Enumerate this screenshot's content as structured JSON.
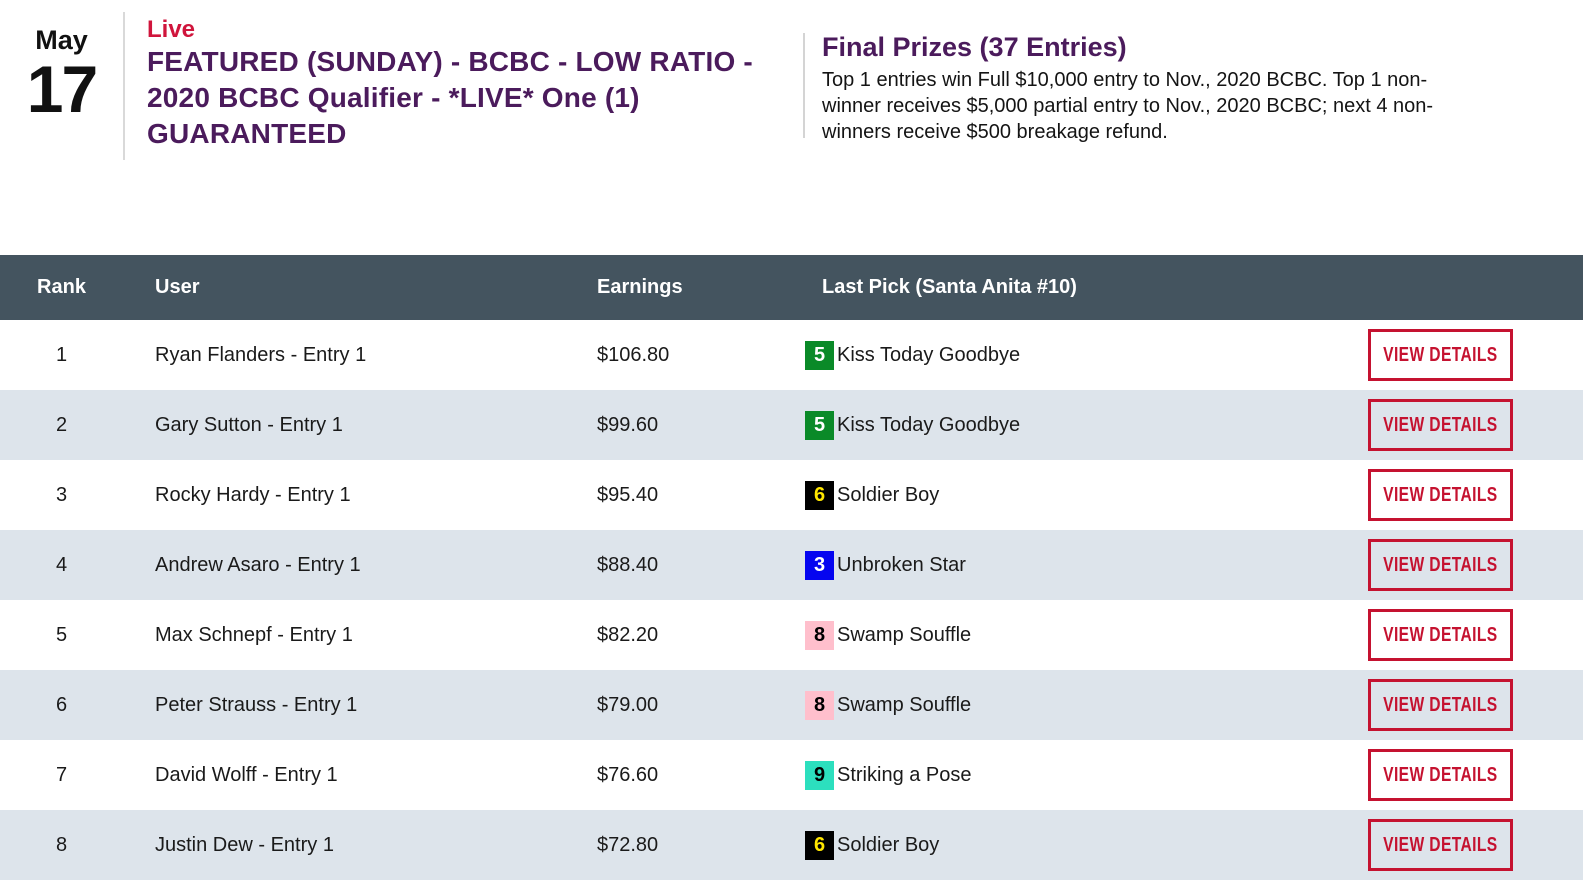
{
  "header": {
    "date_month": "May",
    "date_day": "17",
    "live_label": "Live",
    "title": "FEATURED (SUNDAY) - BCBC - LOW RATIO - 2020 BCBC Qualifier - *LIVE* One (1) GUARANTEED",
    "prizes_title": "Final Prizes (37 Entries)",
    "prizes_description": "Top 1 entries win Full $10,000 entry to Nov., 2020 BCBC. Top 1 non-winner receives $5,000 partial entry to Nov., 2020 BCBC; next 4 non-winners receive $500 breakage refund."
  },
  "table": {
    "headers": {
      "rank": "Rank",
      "user": "User",
      "earnings": "Earnings",
      "last_pick": "Last Pick (Santa Anita #10)"
    },
    "view_details_label": "VIEW DETAILS",
    "rows": [
      {
        "rank": "1",
        "user": "Ryan Flanders - Entry 1",
        "earnings": "$106.80",
        "pick_number": "5",
        "pick_name": "Kiss Today Goodbye",
        "pick_bg": "#0a8a28",
        "pick_fg": "#ffffff"
      },
      {
        "rank": "2",
        "user": "Gary Sutton - Entry 1",
        "earnings": "$99.60",
        "pick_number": "5",
        "pick_name": "Kiss Today Goodbye",
        "pick_bg": "#0a8a28",
        "pick_fg": "#ffffff"
      },
      {
        "rank": "3",
        "user": "Rocky Hardy - Entry 1",
        "earnings": "$95.40",
        "pick_number": "6",
        "pick_name": "Soldier Boy",
        "pick_bg": "#000000",
        "pick_fg": "#ffe600"
      },
      {
        "rank": "4",
        "user": "Andrew Asaro - Entry 1",
        "earnings": "$88.40",
        "pick_number": "3",
        "pick_name": "Unbroken Star",
        "pick_bg": "#0505f0",
        "pick_fg": "#ffffff"
      },
      {
        "rank": "5",
        "user": "Max Schnepf - Entry 1",
        "earnings": "$82.20",
        "pick_number": "8",
        "pick_name": "Swamp Souffle",
        "pick_bg": "#ffbfcc",
        "pick_fg": "#000000"
      },
      {
        "rank": "6",
        "user": "Peter Strauss - Entry 1",
        "earnings": "$79.00",
        "pick_number": "8",
        "pick_name": "Swamp Souffle",
        "pick_bg": "#ffbfcc",
        "pick_fg": "#000000"
      },
      {
        "rank": "7",
        "user": "David Wolff - Entry 1",
        "earnings": "$76.60",
        "pick_number": "9",
        "pick_name": "Striking a Pose",
        "pick_bg": "#2cdfbe",
        "pick_fg": "#000000"
      },
      {
        "rank": "8",
        "user": "Justin Dew - Entry 1",
        "earnings": "$72.80",
        "pick_number": "6",
        "pick_name": "Soldier Boy",
        "pick_bg": "#000000",
        "pick_fg": "#ffe600"
      }
    ]
  },
  "colors": {
    "title_purple": "#4b1b5c",
    "live_red": "#d0153c",
    "button_red": "#c51230",
    "table_header_bar": "#44545f",
    "alt_row": "#dde4eb"
  }
}
